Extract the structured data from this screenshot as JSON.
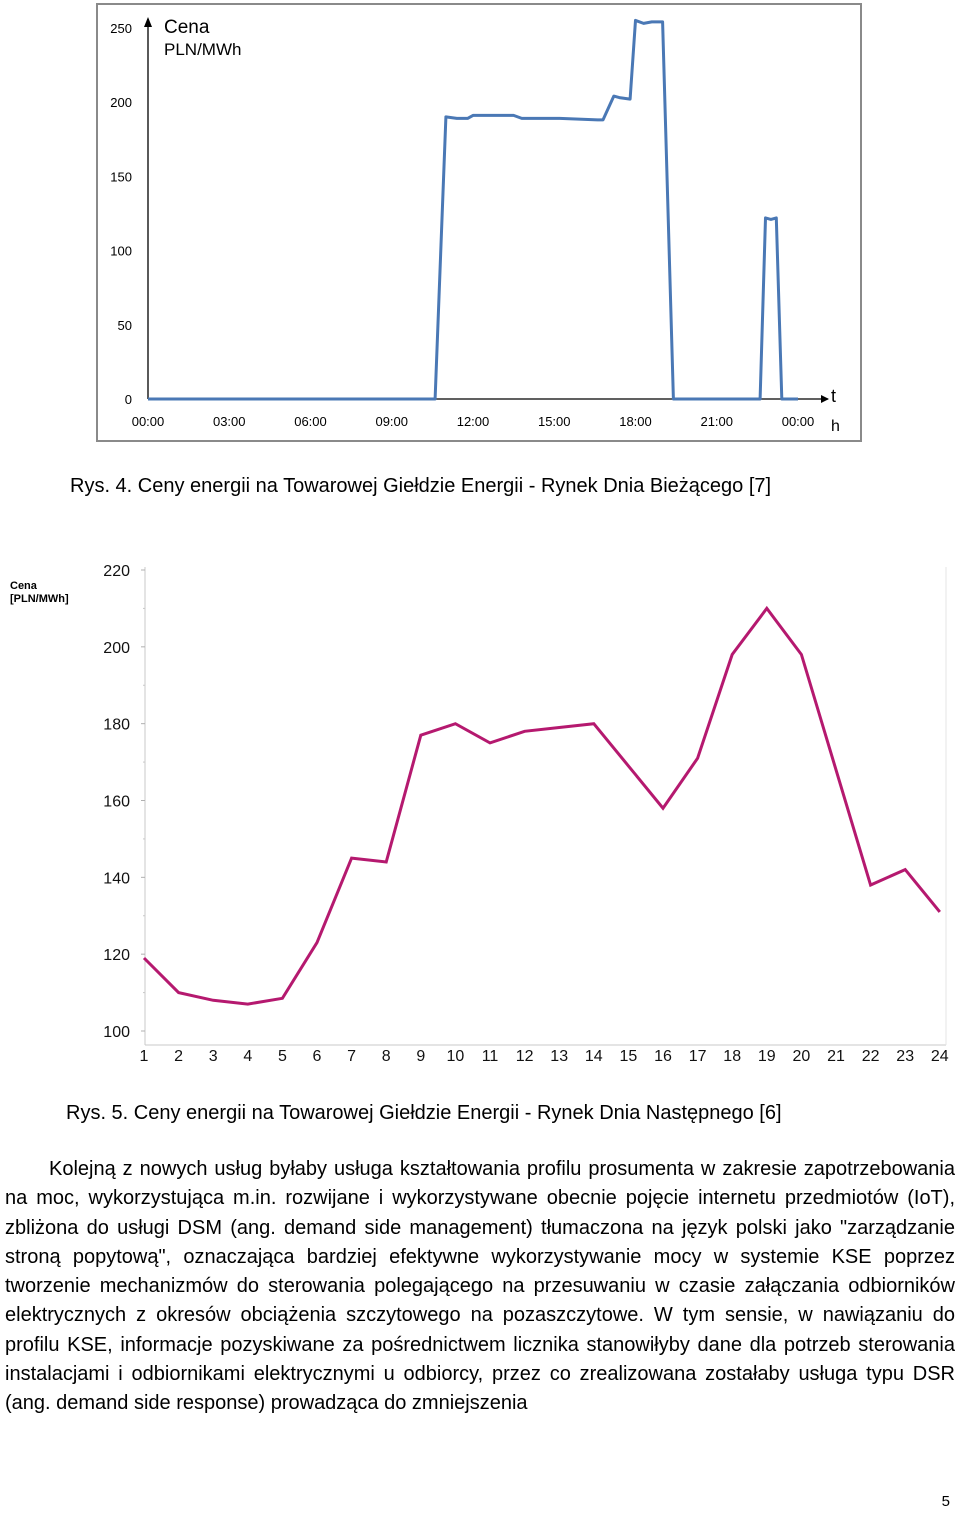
{
  "figures": {
    "fig4": {
      "caption": "Rys. 4. Ceny energii na Towarowej Giełdzie Energii - Rynek Dnia Bieżącego [7]"
    },
    "fig5": {
      "caption": "Rys. 5. Ceny energii na Towarowej Giełdzie Energii - Rynek Dnia Następnego [6]"
    }
  },
  "chart_data": [
    {
      "type": "line",
      "title": "",
      "ylabel_line1": "Cena",
      "ylabel_line2": "PLN/MWh",
      "xlabel_line1": "t",
      "xlabel_line2": "h",
      "ylim": [
        0,
        260
      ],
      "yticks": [
        0,
        50,
        100,
        150,
        200,
        250
      ],
      "xlim": [
        0,
        24
      ],
      "xticks": [
        0,
        3,
        6,
        9,
        12,
        15,
        18,
        21,
        24
      ],
      "xtick_labels": [
        "00:00",
        "03:00",
        "06:00",
        "09:00",
        "12:00",
        "15:00",
        "18:00",
        "21:00",
        "00:00"
      ],
      "color": "#4a78b5",
      "points": [
        [
          0,
          0
        ],
        [
          10.6,
          0
        ],
        [
          11.0,
          190
        ],
        [
          11.4,
          189
        ],
        [
          11.8,
          189
        ],
        [
          12.0,
          191
        ],
        [
          13.5,
          191
        ],
        [
          13.8,
          189
        ],
        [
          15.2,
          189
        ],
        [
          16.6,
          188
        ],
        [
          16.8,
          188
        ],
        [
          17.2,
          204
        ],
        [
          17.4,
          203
        ],
        [
          17.8,
          202
        ],
        [
          18.0,
          255
        ],
        [
          18.3,
          253
        ],
        [
          18.6,
          254
        ],
        [
          19.0,
          254
        ],
        [
          19.4,
          0
        ],
        [
          22.6,
          0
        ],
        [
          22.8,
          122
        ],
        [
          23.0,
          121
        ],
        [
          23.2,
          122
        ],
        [
          23.4,
          0
        ],
        [
          24,
          0
        ]
      ]
    },
    {
      "type": "line",
      "title": "",
      "ylabel_line1": "Cena",
      "ylabel_line2": "[PLN/MWh]",
      "ylim": [
        100,
        220
      ],
      "yticks": [
        100,
        120,
        140,
        160,
        180,
        200,
        220
      ],
      "categories": [
        "1",
        "2",
        "3",
        "4",
        "5",
        "6",
        "7",
        "8",
        "9",
        "10",
        "11",
        "12",
        "13",
        "14",
        "15",
        "16",
        "17",
        "18",
        "19",
        "20",
        "21",
        "22",
        "23",
        "24"
      ],
      "values": [
        119,
        110,
        108,
        107,
        108.5,
        123,
        145,
        144,
        177,
        180,
        175,
        178,
        179,
        180,
        169,
        158,
        171,
        198,
        210,
        198,
        168,
        138,
        142,
        131
      ],
      "color": "#b5196f"
    }
  ],
  "body_text": "Kolejną z nowych usług byłaby usługa kształtowania profilu prosumenta w zakresie zapotrzebowania na moc, wykorzystująca m.in. rozwijane i wykorzystywane obecnie pojęcie internetu przedmiotów (IoT), zbliżona do usługi DSM (ang. demand side management) tłumaczona na język polski jako \"zarządzanie stroną popytową\", oznaczająca bardziej efektywne wykorzystywanie mocy w systemie KSE poprzez tworzenie mechanizmów do sterowania polegającego na przesuwaniu w czasie załączania odbiorników elektrycznych z okresów obciążenia szczytowego na pozaszczytowe. W tym sensie, w nawiązaniu do profilu KSE, informacje pozyskiwane za pośrednictwem licznika stanowiłyby dane dla potrzeb sterowania instalacjami i odbiornikami elektrycznymi u odbiorcy, przez co zrealizowana zostałaby usługa typu DSR (ang. demand side response) prowadząca do zmniejszenia",
  "page_number": "5"
}
